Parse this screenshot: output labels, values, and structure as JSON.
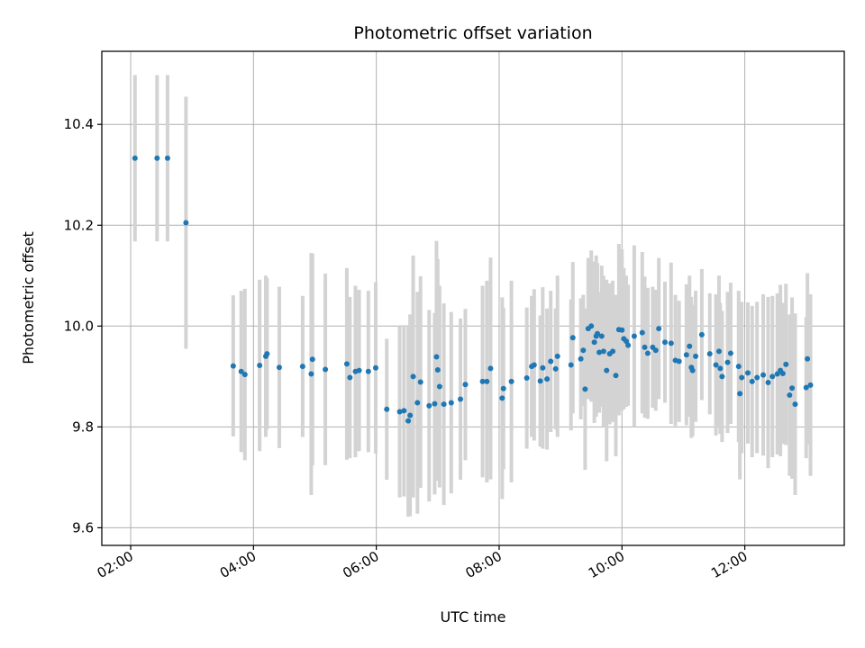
{
  "chart_data": {
    "type": "scatter",
    "title": "Photometric offset variation",
    "xlabel": "UTC time",
    "ylabel": "Photometric offset",
    "x_unit": "hours UTC",
    "xlim": [
      1.53,
      13.62
    ],
    "ylim": [
      9.565,
      10.545
    ],
    "x_ticks": [
      {
        "value": 2,
        "label": "02:00"
      },
      {
        "value": 4,
        "label": "04:00"
      },
      {
        "value": 6,
        "label": "06:00"
      },
      {
        "value": 8,
        "label": "08:00"
      },
      {
        "value": 10,
        "label": "10:00"
      },
      {
        "value": 12,
        "label": "12:00"
      }
    ],
    "y_ticks": [
      {
        "value": 9.6,
        "label": "9.6"
      },
      {
        "value": 9.8,
        "label": "9.8"
      },
      {
        "value": 10.0,
        "label": "10.0"
      },
      {
        "value": 10.2,
        "label": "10.2"
      },
      {
        "value": 10.4,
        "label": "10.4"
      }
    ],
    "grid": true,
    "colors": {
      "marker": "#1f77b4",
      "errorbar": "#d3d3d3",
      "grid": "#b0b0b0"
    },
    "series": [
      {
        "x": [
          2.07,
          2.43,
          2.6,
          2.9,
          3.67,
          3.8,
          3.86,
          4.1,
          4.2,
          4.22,
          4.42,
          4.8,
          4.94,
          4.96,
          5.17,
          5.52,
          5.57,
          5.66,
          5.72,
          5.87,
          5.99,
          6.17,
          6.38,
          6.45,
          6.52,
          6.55,
          6.6,
          6.67,
          6.72,
          6.86,
          6.95,
          6.98,
          7.0,
          7.03,
          7.1,
          7.22,
          7.37,
          7.45,
          7.73,
          7.8,
          7.86,
          8.05,
          8.07,
          8.2,
          8.45,
          8.53,
          8.57,
          8.67,
          8.71,
          8.78,
          8.84,
          8.92,
          8.95,
          9.17,
          9.2,
          9.33,
          9.37,
          9.4,
          9.45,
          9.5,
          9.55,
          9.58,
          9.6,
          9.63,
          9.67,
          9.7,
          9.75,
          9.8,
          9.85,
          9.9,
          9.95,
          10.0,
          10.03,
          10.07,
          10.1,
          10.2,
          10.33,
          10.37,
          10.42,
          10.5,
          10.55,
          10.6,
          10.7,
          10.8,
          10.87,
          10.93,
          11.05,
          11.1,
          11.13,
          11.15,
          11.2,
          11.3,
          11.43,
          11.53,
          11.58,
          11.6,
          11.63,
          11.72,
          11.77,
          11.9,
          11.92,
          11.95,
          12.05,
          12.12,
          12.2,
          12.3,
          12.38,
          12.45,
          12.53,
          12.58,
          12.62,
          12.67,
          12.73,
          12.77,
          12.82,
          13.0,
          13.02,
          13.07
        ],
        "y": [
          10.333,
          10.333,
          10.333,
          10.205,
          9.921,
          9.91,
          9.904,
          9.922,
          9.94,
          9.945,
          9.918,
          9.92,
          9.905,
          9.934,
          9.914,
          9.925,
          9.898,
          9.91,
          9.912,
          9.91,
          9.917,
          9.835,
          9.83,
          9.832,
          9.812,
          9.823,
          9.9,
          9.848,
          9.889,
          9.842,
          9.846,
          9.939,
          9.913,
          9.88,
          9.845,
          9.848,
          9.855,
          9.884,
          9.89,
          9.89,
          9.916,
          9.857,
          9.876,
          9.89,
          9.897,
          9.92,
          9.923,
          9.891,
          9.917,
          9.895,
          9.93,
          9.915,
          9.94,
          9.923,
          9.977,
          9.935,
          9.952,
          9.875,
          9.995,
          10.0,
          9.968,
          9.98,
          9.985,
          9.948,
          9.98,
          9.95,
          9.912,
          9.945,
          9.95,
          9.902,
          9.993,
          9.992,
          9.975,
          9.97,
          9.962,
          9.98,
          9.987,
          9.958,
          9.946,
          9.958,
          9.952,
          9.995,
          9.968,
          9.966,
          9.932,
          9.93,
          9.943,
          9.96,
          9.918,
          9.912,
          9.94,
          9.983,
          9.945,
          9.923,
          9.95,
          9.916,
          9.9,
          9.928,
          9.946,
          9.92,
          9.866,
          9.898,
          9.907,
          9.89,
          9.898,
          9.903,
          9.888,
          9.9,
          9.905,
          9.912,
          9.906,
          9.924,
          9.863,
          9.877,
          9.845,
          9.878,
          9.935,
          9.883
        ],
        "yerr": [
          0.165,
          0.165,
          0.165,
          0.25,
          0.14,
          0.16,
          0.17,
          0.17,
          0.16,
          0.15,
          0.16,
          0.14,
          0.24,
          0.21,
          0.19,
          0.19,
          0.16,
          0.17,
          0.16,
          0.16,
          0.17,
          0.14,
          0.17,
          0.17,
          0.19,
          0.2,
          0.24,
          0.22,
          0.21,
          0.19,
          0.18,
          0.23,
          0.22,
          0.2,
          0.2,
          0.18,
          0.16,
          0.15,
          0.19,
          0.2,
          0.22,
          0.2,
          0.16,
          0.2,
          0.14,
          0.14,
          0.15,
          0.13,
          0.16,
          0.14,
          0.14,
          0.12,
          0.16,
          0.13,
          0.15,
          0.12,
          0.11,
          0.16,
          0.14,
          0.15,
          0.16,
          0.16,
          0.14,
          0.12,
          0.14,
          0.15,
          0.18,
          0.14,
          0.14,
          0.16,
          0.17,
          0.16,
          0.14,
          0.13,
          0.12,
          0.18,
          0.16,
          0.14,
          0.13,
          0.12,
          0.12,
          0.14,
          0.12,
          0.16,
          0.13,
          0.12,
          0.14,
          0.14,
          0.14,
          0.13,
          0.13,
          0.13,
          0.12,
          0.14,
          0.15,
          0.13,
          0.13,
          0.14,
          0.14,
          0.15,
          0.17,
          0.15,
          0.14,
          0.15,
          0.15,
          0.16,
          0.17,
          0.16,
          0.16,
          0.17,
          0.14,
          0.16,
          0.16,
          0.18,
          0.18,
          0.14,
          0.17,
          0.18
        ]
      }
    ]
  }
}
